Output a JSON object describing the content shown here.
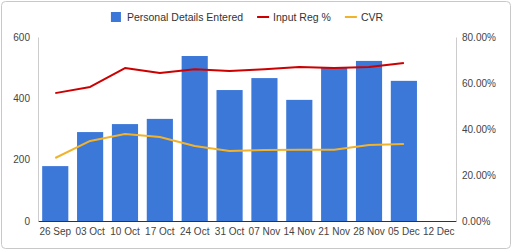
{
  "chart_data": {
    "type": "bar",
    "categories": [
      "26 Sep",
      "03 Oct",
      "10 Oct",
      "17 Oct",
      "24 Oct",
      "31 Oct",
      "07 Nov",
      "14 Nov",
      "21 Nov",
      "28 Nov",
      "05 Dec",
      "12 Dec"
    ],
    "series": [
      {
        "name": "Personal Details Entered",
        "type": "bar",
        "color": "#3c78d8",
        "values": [
          179,
          290,
          316,
          333,
          538,
          427,
          466,
          395,
          502,
          522,
          457,
          null
        ]
      },
      {
        "name": "Input Reg %",
        "type": "line",
        "axis": "y2",
        "color": "#cc0000",
        "values": [
          55.6,
          58.3,
          66.5,
          64.3,
          66,
          65.2,
          66,
          67,
          66.5,
          67,
          68.7,
          null
        ]
      },
      {
        "name": "CVR",
        "type": "line",
        "axis": "y2",
        "color": "#f1b32c",
        "values": [
          27.4,
          34.8,
          37.8,
          36.5,
          32.6,
          30.4,
          30.9,
          31,
          31,
          33,
          33.5,
          null
        ]
      }
    ],
    "ylim": [
      0,
      600
    ],
    "yticks": [
      0,
      200,
      400,
      600
    ],
    "y2lim": [
      0,
      80
    ],
    "y2ticks": [
      {
        "value": 0,
        "label": "0.00%"
      },
      {
        "value": 20,
        "label": "20.00%"
      },
      {
        "value": 40,
        "label": "40.00%"
      },
      {
        "value": 60,
        "label": "60.00%"
      },
      {
        "value": 80,
        "label": "80.00%"
      }
    ],
    "grid": false,
    "legend": "top"
  }
}
